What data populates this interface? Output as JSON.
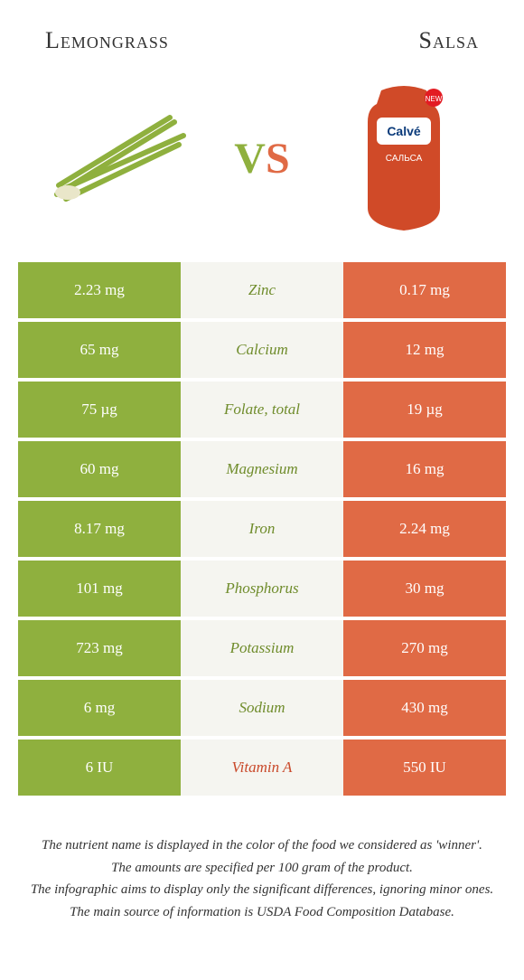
{
  "colors": {
    "left_bg": "#8fb03e",
    "right_bg": "#e06a45",
    "mid_bg": "#f5f5f0",
    "nutrient_left": "#6f8c2b",
    "nutrient_right": "#c9492a",
    "text_white": "#ffffff"
  },
  "header": {
    "left_title": "Lemongrass",
    "right_title": "Salsa"
  },
  "vs": {
    "v": "V",
    "s": "S"
  },
  "rows": [
    {
      "left": "2.23 mg",
      "nutrient": "Zinc",
      "right": "0.17 mg",
      "winner": "left"
    },
    {
      "left": "65 mg",
      "nutrient": "Calcium",
      "right": "12 mg",
      "winner": "left"
    },
    {
      "left": "75 µg",
      "nutrient": "Folate, total",
      "right": "19 µg",
      "winner": "left"
    },
    {
      "left": "60 mg",
      "nutrient": "Magnesium",
      "right": "16 mg",
      "winner": "left"
    },
    {
      "left": "8.17 mg",
      "nutrient": "Iron",
      "right": "2.24 mg",
      "winner": "left"
    },
    {
      "left": "101 mg",
      "nutrient": "Phosphorus",
      "right": "30 mg",
      "winner": "left"
    },
    {
      "left": "723 mg",
      "nutrient": "Potassium",
      "right": "270 mg",
      "winner": "left"
    },
    {
      "left": "6 mg",
      "nutrient": "Sodium",
      "right": "430 mg",
      "winner": "left"
    },
    {
      "left": "6 IU",
      "nutrient": "Vitamin A",
      "right": "550 IU",
      "winner": "right"
    }
  ],
  "footer": [
    "The nutrient name is displayed in the color of the food we considered as 'winner'.",
    "The amounts are specified per 100 gram of the product.",
    "The infographic aims to display only the significant differences, ignoring minor ones.",
    "The main source of information is USDA Food Composition Database."
  ]
}
